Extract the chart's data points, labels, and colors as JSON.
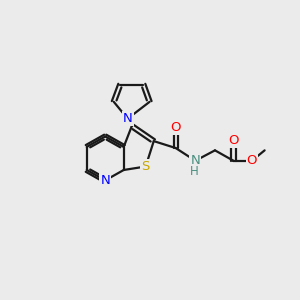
{
  "background_color": "#ebebeb",
  "bond_color": "#1a1a1a",
  "N_color": "#0000ff",
  "S_color": "#c8a800",
  "O_color": "#ff0000",
  "NH_color": "#4a9080",
  "figsize": [
    3.0,
    3.0
  ],
  "dpi": 100,
  "xlim": [
    0,
    10
  ],
  "ylim": [
    0,
    10
  ]
}
